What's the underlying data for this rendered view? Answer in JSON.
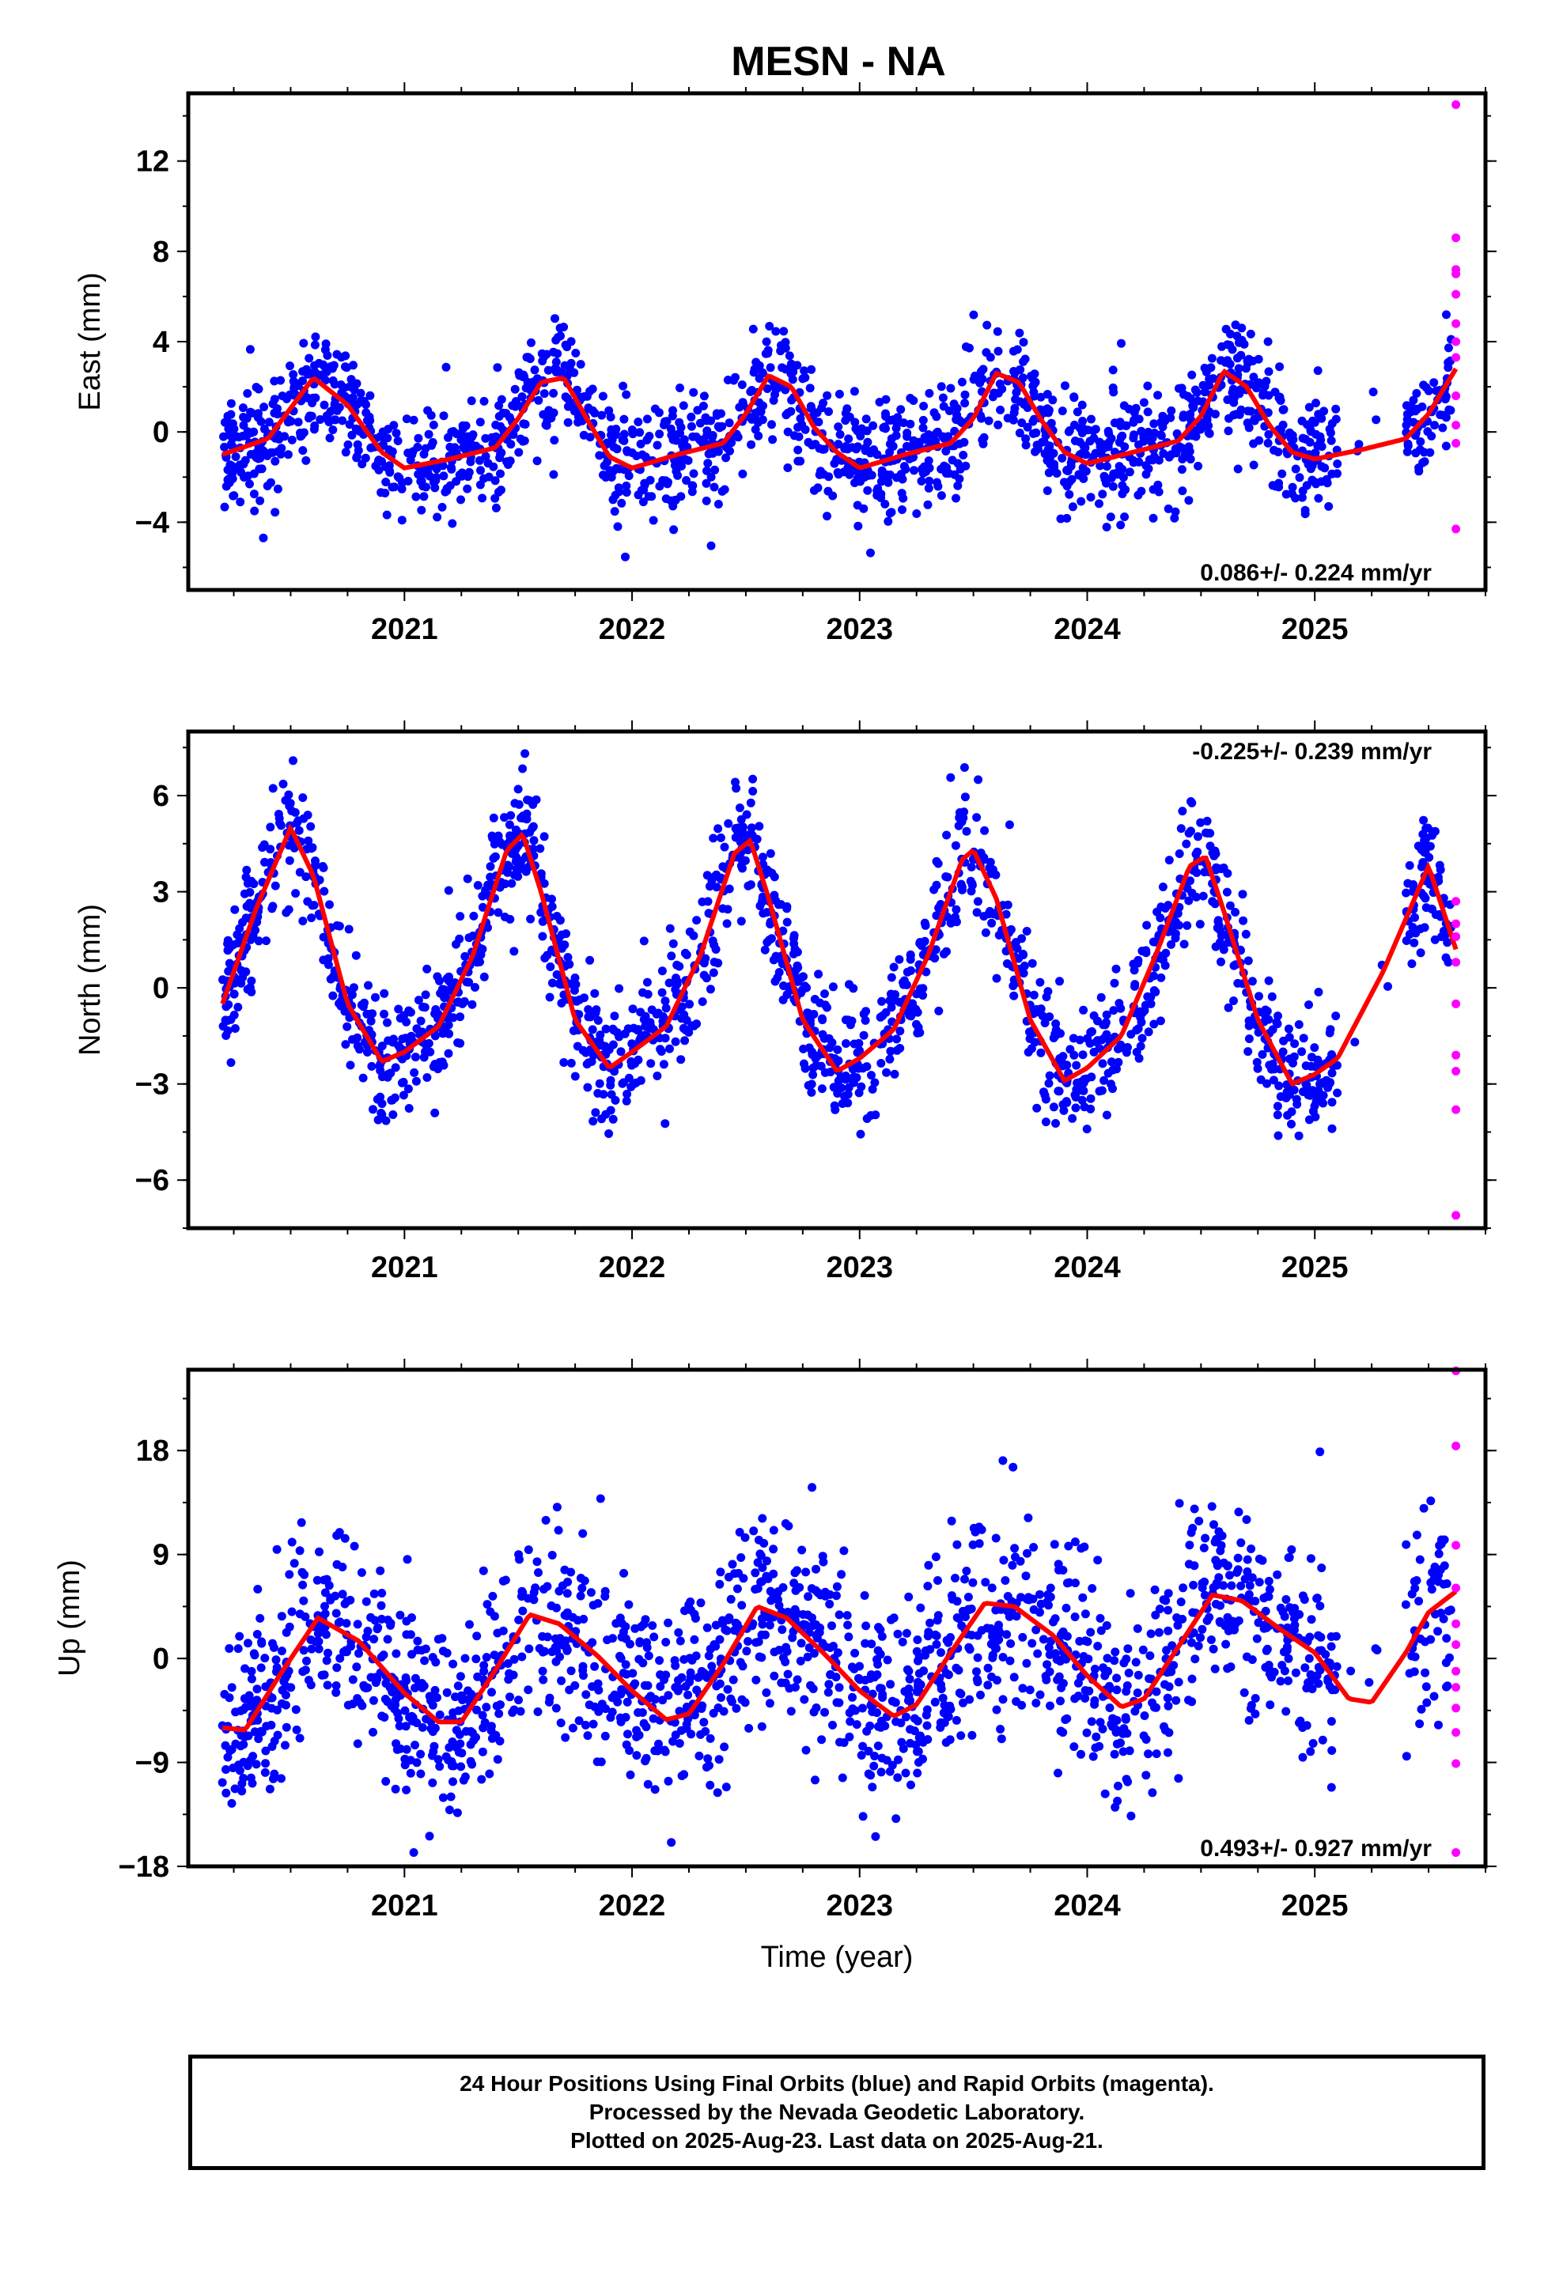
{
  "title": "MESN - NA",
  "xlabel": "Time (year)",
  "footer": {
    "line1": "24 Hour Positions Using Final Orbits (blue) and Rapid Orbits (magenta).",
    "line2": "Processed by the Nevada Geodetic Laboratory.",
    "line3": "Plotted on 2025-Aug-23. Last data on 2025-Aug-21."
  },
  "colors": {
    "final_orbits": "#0000ff",
    "rapid_orbits": "#ff00ff",
    "model_fit": "#ff0000",
    "frame": "#000000"
  },
  "chart_data": [
    {
      "type": "scatter",
      "title": "MESN - NA",
      "ylabel": "East (mm)",
      "xlabel": "",
      "xlim": [
        2020.05,
        2025.75
      ],
      "ylim": [
        -7,
        15
      ],
      "xticks": [
        2021,
        2022,
        2023,
        2024,
        2025
      ],
      "yticks": [
        -4,
        0,
        4,
        8,
        12
      ],
      "rate_label": "0.086+/- 0.224 mm/yr",
      "rate_position": "bottom-right",
      "grid": false,
      "series": [
        {
          "name": "Final Orbits",
          "color": "#0000ff",
          "x_range": [
            2020.2,
            2025.6
          ],
          "gap": [
            2025.1,
            2025.4
          ],
          "fit_ref": "model",
          "scatter_sd": 1.3
        },
        {
          "name": "Rapid Orbits",
          "color": "#ff00ff",
          "points": [
            [
              2025.62,
              14.5
            ],
            [
              2025.62,
              8.6
            ],
            [
              2025.62,
              7.2
            ],
            [
              2025.62,
              7.0
            ],
            [
              2025.62,
              6.1
            ],
            [
              2025.62,
              4.8
            ],
            [
              2025.62,
              4.0
            ],
            [
              2025.62,
              3.3
            ],
            [
              2025.62,
              1.6
            ],
            [
              2025.62,
              0.3
            ],
            [
              2025.62,
              -0.5
            ],
            [
              2025.62,
              -4.3
            ]
          ]
        },
        {
          "name": "Model",
          "color": "#ff0000",
          "x": [
            2020.2,
            2020.4,
            2020.6,
            2020.75,
            2020.9,
            2021.0,
            2021.2,
            2021.4,
            2021.5,
            2021.6,
            2021.7,
            2021.8,
            2021.9,
            2022.0,
            2022.2,
            2022.4,
            2022.5,
            2022.6,
            2022.7,
            2022.8,
            2022.9,
            2023.0,
            2023.2,
            2023.4,
            2023.5,
            2023.6,
            2023.7,
            2023.8,
            2023.9,
            2024.0,
            2024.2,
            2024.4,
            2024.5,
            2024.6,
            2024.7,
            2024.8,
            2024.9,
            2025.0,
            2025.2,
            2025.4,
            2025.5,
            2025.62
          ],
          "y": [
            -1.0,
            -0.3,
            2.4,
            1.2,
            -0.9,
            -1.6,
            -1.2,
            -0.7,
            0.6,
            2.2,
            2.4,
            0.6,
            -1.1,
            -1.6,
            -1.0,
            -0.5,
            0.8,
            2.5,
            2.0,
            0.2,
            -0.9,
            -1.6,
            -1.0,
            -0.5,
            0.6,
            2.6,
            2.2,
            0.5,
            -0.9,
            -1.4,
            -0.9,
            -0.4,
            0.7,
            2.7,
            2.0,
            0.3,
            -0.9,
            -1.2,
            -0.8,
            -0.3,
            0.8,
            2.8
          ]
        }
      ]
    },
    {
      "type": "scatter",
      "ylabel": "North (mm)",
      "xlabel": "",
      "xlim": [
        2020.05,
        2025.75
      ],
      "ylim": [
        -7.5,
        8
      ],
      "xticks": [
        2021,
        2022,
        2023,
        2024,
        2025
      ],
      "yticks": [
        -6,
        -3,
        0,
        3,
        6
      ],
      "rate_label": "-0.225+/- 0.239 mm/yr",
      "rate_position": "top-right",
      "grid": false,
      "series": [
        {
          "name": "Final Orbits",
          "color": "#0000ff",
          "x_range": [
            2020.2,
            2025.6
          ],
          "gap": [
            2025.1,
            2025.4
          ],
          "fit_ref": "model",
          "scatter_sd": 1.0
        },
        {
          "name": "Rapid Orbits",
          "color": "#ff00ff",
          "points": [
            [
              2025.62,
              2.7
            ],
            [
              2025.62,
              2.0
            ],
            [
              2025.62,
              1.6
            ],
            [
              2025.62,
              0.8
            ],
            [
              2025.62,
              -0.5
            ],
            [
              2025.62,
              -2.1
            ],
            [
              2025.62,
              -2.6
            ],
            [
              2025.62,
              -3.8
            ],
            [
              2025.62,
              -7.1
            ]
          ]
        },
        {
          "name": "Model",
          "color": "#ff0000",
          "x": [
            2020.2,
            2020.35,
            2020.5,
            2020.6,
            2020.75,
            2020.9,
            2021.0,
            2021.15,
            2021.3,
            2021.45,
            2021.52,
            2021.6,
            2021.75,
            2021.9,
            2022.0,
            2022.15,
            2022.3,
            2022.45,
            2022.52,
            2022.6,
            2022.75,
            2022.9,
            2023.0,
            2023.15,
            2023.3,
            2023.45,
            2023.5,
            2023.6,
            2023.75,
            2023.9,
            2024.0,
            2024.15,
            2024.3,
            2024.45,
            2024.52,
            2024.6,
            2024.75,
            2024.9,
            2025.0,
            2025.1,
            2025.3,
            2025.5,
            2025.62
          ],
          "y": [
            -0.5,
            2.5,
            5.0,
            3.5,
            -0.5,
            -2.3,
            -2.0,
            -1.2,
            1.0,
            4.3,
            4.8,
            3.0,
            -1.0,
            -2.5,
            -2.0,
            -1.2,
            1.0,
            4.2,
            4.6,
            2.8,
            -1.0,
            -2.6,
            -2.2,
            -1.3,
            1.0,
            4.0,
            4.3,
            2.8,
            -1.0,
            -2.9,
            -2.5,
            -1.5,
            1.0,
            3.8,
            4.1,
            2.4,
            -1.0,
            -3.0,
            -2.7,
            -2.2,
            0.5,
            3.8,
            1.2
          ]
        }
      ]
    },
    {
      "type": "scatter",
      "ylabel": "Up (mm)",
      "xlabel": "Time (year)",
      "xlim": [
        2020.05,
        2025.75
      ],
      "ylim": [
        -18,
        25
      ],
      "xticks": [
        2021,
        2022,
        2023,
        2024,
        2025
      ],
      "yticks": [
        -18,
        -9,
        0,
        9,
        18
      ],
      "rate_label": "0.493+/- 0.927 mm/yr",
      "rate_position": "bottom-right",
      "grid": false,
      "series": [
        {
          "name": "Final Orbits",
          "color": "#0000ff",
          "x_range": [
            2020.2,
            2025.6
          ],
          "gap": [
            2025.1,
            2025.4
          ],
          "fit_ref": "model",
          "scatter_sd": 4.2
        },
        {
          "name": "Rapid Orbits",
          "color": "#ff00ff",
          "points": [
            [
              2025.62,
              24.9
            ],
            [
              2025.62,
              18.4
            ],
            [
              2025.62,
              9.8
            ],
            [
              2025.62,
              6.1
            ],
            [
              2025.62,
              3.0
            ],
            [
              2025.62,
              1.2
            ],
            [
              2025.62,
              -1.1
            ],
            [
              2025.62,
              -2.5
            ],
            [
              2025.62,
              -4.3
            ],
            [
              2025.62,
              -6.4
            ],
            [
              2025.62,
              -9.1
            ],
            [
              2025.62,
              -16.8
            ]
          ]
        },
        {
          "name": "Model",
          "color": "#ff0000",
          "x": [
            2020.2,
            2020.3,
            2020.45,
            2020.62,
            2020.8,
            2021.0,
            2021.15,
            2021.25,
            2021.4,
            2021.55,
            2021.68,
            2021.85,
            2022.0,
            2022.15,
            2022.25,
            2022.4,
            2022.55,
            2022.68,
            2022.85,
            2023.0,
            2023.15,
            2023.25,
            2023.4,
            2023.55,
            2023.68,
            2023.85,
            2024.0,
            2024.15,
            2024.25,
            2024.4,
            2024.55,
            2024.68,
            2024.85,
            2025.0,
            2025.15,
            2025.25,
            2025.4,
            2025.5,
            2025.62
          ],
          "y": [
            -6.0,
            -6.2,
            -1.5,
            3.5,
            1.5,
            -3.0,
            -5.5,
            -5.5,
            -1.0,
            3.8,
            3.0,
            0.2,
            -2.8,
            -5.3,
            -4.8,
            -0.5,
            4.5,
            3.5,
            0.3,
            -2.8,
            -5.0,
            -4.0,
            0.5,
            4.8,
            4.5,
            2.0,
            -1.5,
            -4.2,
            -3.5,
            1.0,
            5.5,
            5.0,
            2.5,
            0.5,
            -3.5,
            -3.8,
            0.5,
            4.0,
            5.8
          ]
        }
      ]
    }
  ]
}
